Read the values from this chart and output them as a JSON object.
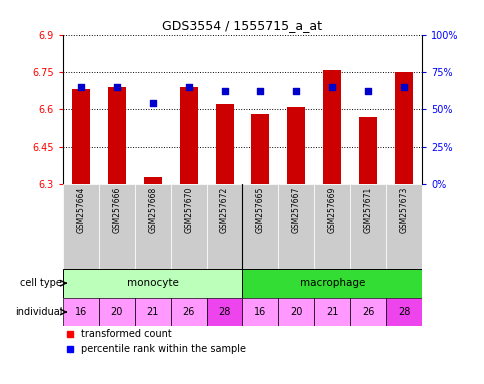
{
  "title": "GDS3554 / 1555715_a_at",
  "samples": [
    "GSM257664",
    "GSM257666",
    "GSM257668",
    "GSM257670",
    "GSM257672",
    "GSM257665",
    "GSM257667",
    "GSM257669",
    "GSM257671",
    "GSM257673"
  ],
  "transformed_counts": [
    6.68,
    6.69,
    6.33,
    6.69,
    6.62,
    6.58,
    6.61,
    6.76,
    6.57,
    6.75
  ],
  "percentile_ranks": [
    0.65,
    0.65,
    0.54,
    0.65,
    0.62,
    0.62,
    0.62,
    0.65,
    0.62,
    0.65
  ],
  "individuals": [
    "16",
    "20",
    "21",
    "26",
    "28",
    "16",
    "20",
    "21",
    "26",
    "28"
  ],
  "ylim_left": [
    6.3,
    6.9
  ],
  "ylim_right": [
    0.0,
    1.0
  ],
  "yticks_left": [
    6.3,
    6.45,
    6.6,
    6.75,
    6.9
  ],
  "yticks_left_labels": [
    "6.3",
    "6.45",
    "6.6",
    "6.75",
    "6.9"
  ],
  "yticks_right": [
    0.0,
    0.25,
    0.5,
    0.75,
    1.0
  ],
  "yticks_right_labels": [
    "0%",
    "25%",
    "50%",
    "75%",
    "100%"
  ],
  "bar_color": "#cc0000",
  "dot_color": "#0000cc",
  "bar_bottom": 6.3,
  "monocyte_color": "#bbffbb",
  "macrophage_color": "#33dd33",
  "ind_color_light": "#ff99ff",
  "ind_color_dark": "#ee44ee",
  "bar_width": 0.5,
  "gray_box": "#cccccc"
}
